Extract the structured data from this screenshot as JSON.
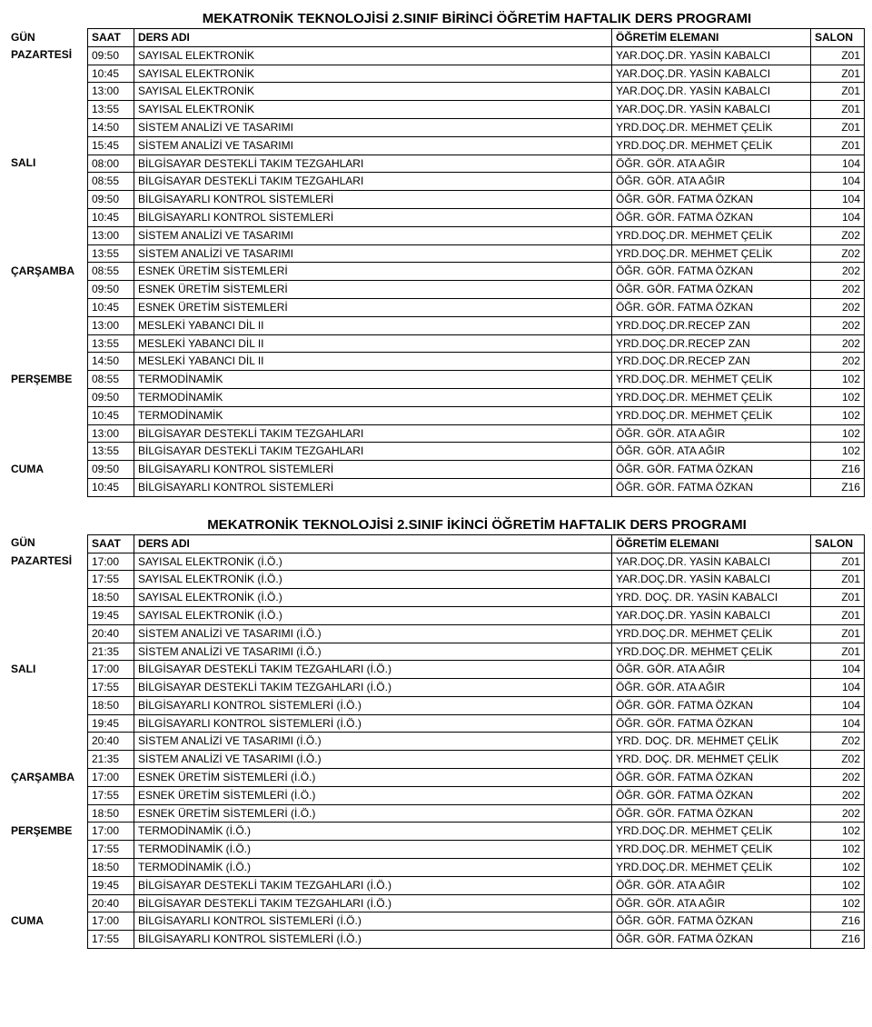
{
  "labels": {
    "gun": "GÜN",
    "saat": "SAAT",
    "ders": "DERS ADI",
    "ogretim": "ÖĞRETİM ELEMANI",
    "salon": "SALON"
  },
  "table1": {
    "title": "MEKATRONİK TEKNOLOJİSİ 2.SINIF BİRİNCİ ÖĞRETİM HAFTALIK DERS PROGRAMI",
    "rows": [
      {
        "gun": "PAZARTESİ",
        "saat": "09:50",
        "ders": "SAYISAL ELEKTRONİK",
        "ogretim": "YAR.DOÇ.DR. YASİN KABALCI",
        "salon": "Z01"
      },
      {
        "gun": "",
        "saat": "10:45",
        "ders": "SAYISAL ELEKTRONİK",
        "ogretim": "YAR.DOÇ.DR. YASİN KABALCI",
        "salon": "Z01"
      },
      {
        "gun": "",
        "saat": "13:00",
        "ders": "SAYISAL ELEKTRONİK",
        "ogretim": "YAR.DOÇ.DR. YASİN KABALCI",
        "salon": "Z01"
      },
      {
        "gun": "",
        "saat": "13:55",
        "ders": "SAYISAL ELEKTRONİK",
        "ogretim": "YAR.DOÇ.DR. YASİN KABALCI",
        "salon": "Z01"
      },
      {
        "gun": "",
        "saat": "14:50",
        "ders": "SİSTEM ANALİZİ VE TASARIMI",
        "ogretim": "YRD.DOÇ.DR. MEHMET ÇELİK",
        "salon": "Z01"
      },
      {
        "gun": "",
        "saat": "15:45",
        "ders": "SİSTEM ANALİZİ VE TASARIMI",
        "ogretim": "YRD.DOÇ.DR. MEHMET ÇELİK",
        "salon": "Z01"
      },
      {
        "gun": "SALI",
        "saat": "08:00",
        "ders": "BİLGİSAYAR DESTEKLİ TAKIM TEZGAHLARI",
        "ogretim": "ÖĞR. GÖR. ATA AĞIR",
        "salon": "104"
      },
      {
        "gun": "",
        "saat": "08:55",
        "ders": "BİLGİSAYAR DESTEKLİ TAKIM TEZGAHLARI",
        "ogretim": "ÖĞR. GÖR. ATA AĞIR",
        "salon": "104"
      },
      {
        "gun": "",
        "saat": "09:50",
        "ders": "BİLGİSAYARLI KONTROL SİSTEMLERİ",
        "ogretim": "ÖĞR. GÖR. FATMA ÖZKAN",
        "salon": "104"
      },
      {
        "gun": "",
        "saat": "10:45",
        "ders": "BİLGİSAYARLI KONTROL SİSTEMLERİ",
        "ogretim": "ÖĞR. GÖR. FATMA ÖZKAN",
        "salon": "104"
      },
      {
        "gun": "",
        "saat": "13:00",
        "ders": "SİSTEM ANALİZİ VE TASARIMI",
        "ogretim": "YRD.DOÇ.DR. MEHMET ÇELİK",
        "salon": "Z02"
      },
      {
        "gun": "",
        "saat": "13:55",
        "ders": "SİSTEM ANALİZİ VE TASARIMI",
        "ogretim": "YRD.DOÇ.DR. MEHMET ÇELİK",
        "salon": "Z02"
      },
      {
        "gun": "ÇARŞAMBA",
        "saat": "08:55",
        "ders": "ESNEK ÜRETİM SİSTEMLERİ",
        "ogretim": "ÖĞR. GÖR. FATMA ÖZKAN",
        "salon": "202"
      },
      {
        "gun": "",
        "saat": "09:50",
        "ders": "ESNEK ÜRETİM SİSTEMLERİ",
        "ogretim": "ÖĞR. GÖR. FATMA ÖZKAN",
        "salon": "202"
      },
      {
        "gun": "",
        "saat": "10:45",
        "ders": "ESNEK ÜRETİM SİSTEMLERİ",
        "ogretim": "ÖĞR. GÖR. FATMA ÖZKAN",
        "salon": "202"
      },
      {
        "gun": "",
        "saat": "13:00",
        "ders": "MESLEKİ YABANCI DİL II",
        "ogretim": "YRD.DOÇ.DR.RECEP ZAN",
        "salon": "202"
      },
      {
        "gun": "",
        "saat": "13:55",
        "ders": "MESLEKİ YABANCI DİL II",
        "ogretim": "YRD.DOÇ.DR.RECEP ZAN",
        "salon": "202"
      },
      {
        "gun": "",
        "saat": "14:50",
        "ders": "MESLEKİ YABANCI DİL II",
        "ogretim": "YRD.DOÇ.DR.RECEP ZAN",
        "salon": "202"
      },
      {
        "gun": "PERŞEMBE",
        "saat": "08:55",
        "ders": "TERMODİNAMİK",
        "ogretim": "YRD.DOÇ.DR. MEHMET ÇELİK",
        "salon": "102"
      },
      {
        "gun": "",
        "saat": "09:50",
        "ders": "TERMODİNAMİK",
        "ogretim": "YRD.DOÇ.DR. MEHMET ÇELİK",
        "salon": "102"
      },
      {
        "gun": "",
        "saat": "10:45",
        "ders": "TERMODİNAMİK",
        "ogretim": "YRD.DOÇ.DR. MEHMET ÇELİK",
        "salon": "102"
      },
      {
        "gun": "",
        "saat": "13:00",
        "ders": "BİLGİSAYAR DESTEKLİ TAKIM TEZGAHLARI",
        "ogretim": "ÖĞR. GÖR. ATA AĞIR",
        "salon": "102"
      },
      {
        "gun": "",
        "saat": "13:55",
        "ders": "BİLGİSAYAR DESTEKLİ TAKIM TEZGAHLARI",
        "ogretim": "ÖĞR. GÖR. ATA AĞIR",
        "salon": "102"
      },
      {
        "gun": "CUMA",
        "saat": "09:50",
        "ders": "BİLGİSAYARLI KONTROL SİSTEMLERİ",
        "ogretim": "ÖĞR. GÖR. FATMA ÖZKAN",
        "salon": "Z16"
      },
      {
        "gun": "",
        "saat": "10:45",
        "ders": "BİLGİSAYARLI KONTROL SİSTEMLERİ",
        "ogretim": "ÖĞR. GÖR. FATMA ÖZKAN",
        "salon": "Z16"
      }
    ]
  },
  "table2": {
    "title": "MEKATRONİK TEKNOLOJİSİ 2.SINIF İKİNCİ ÖĞRETİM HAFTALIK DERS PROGRAMI",
    "rows": [
      {
        "gun": "PAZARTESİ",
        "saat": "17:00",
        "ders": "SAYISAL ELEKTRONİK (İ.Ö.)",
        "ogretim": "YAR.DOÇ.DR. YASİN KABALCI",
        "salon": "Z01"
      },
      {
        "gun": "",
        "saat": "17:55",
        "ders": "SAYISAL ELEKTRONİK (İ.Ö.)",
        "ogretim": "YAR.DOÇ.DR. YASİN KABALCI",
        "salon": "Z01"
      },
      {
        "gun": "",
        "saat": "18:50",
        "ders": "SAYISAL ELEKTRONİK (İ.Ö.)",
        "ogretim": "YRD. DOÇ. DR. YASİN KABALCI",
        "salon": "Z01"
      },
      {
        "gun": "",
        "saat": "19:45",
        "ders": "SAYISAL ELEKTRONİK (İ.Ö.)",
        "ogretim": "YAR.DOÇ.DR. YASİN KABALCI",
        "salon": "Z01"
      },
      {
        "gun": "",
        "saat": "20:40",
        "ders": "SİSTEM ANALİZİ VE TASARIMI (İ.Ö.)",
        "ogretim": "YRD.DOÇ.DR. MEHMET ÇELİK",
        "salon": "Z01"
      },
      {
        "gun": "",
        "saat": "21:35",
        "ders": "SİSTEM ANALİZİ VE TASARIMI (İ.Ö.)",
        "ogretim": "YRD.DOÇ.DR. MEHMET ÇELİK",
        "salon": "Z01"
      },
      {
        "gun": "SALI",
        "saat": "17:00",
        "ders": "BİLGİSAYAR DESTEKLİ TAKIM TEZGAHLARI (İ.Ö.)",
        "ogretim": "ÖĞR. GÖR. ATA AĞIR",
        "salon": "104"
      },
      {
        "gun": "",
        "saat": "17:55",
        "ders": "BİLGİSAYAR DESTEKLİ TAKIM TEZGAHLARI (İ.Ö.)",
        "ogretim": "ÖĞR. GÖR. ATA AĞIR",
        "salon": "104"
      },
      {
        "gun": "",
        "saat": "18:50",
        "ders": "BİLGİSAYARLI KONTROL SİSTEMLERİ (İ.Ö.)",
        "ogretim": "ÖĞR. GÖR. FATMA ÖZKAN",
        "salon": "104"
      },
      {
        "gun": "",
        "saat": "19:45",
        "ders": "BİLGİSAYARLI KONTROL SİSTEMLERİ (İ.Ö.)",
        "ogretim": "ÖĞR. GÖR. FATMA ÖZKAN",
        "salon": "104"
      },
      {
        "gun": "",
        "saat": "20:40",
        "ders": "SİSTEM ANALİZİ VE TASARIMI (İ.Ö.)",
        "ogretim": "YRD. DOÇ. DR. MEHMET ÇELİK",
        "salon": "Z02"
      },
      {
        "gun": "",
        "saat": "21:35",
        "ders": "SİSTEM ANALİZİ VE TASARIMI (İ.Ö.)",
        "ogretim": "YRD. DOÇ. DR. MEHMET ÇELİK",
        "salon": "Z02"
      },
      {
        "gun": "ÇARŞAMBA",
        "saat": "17:00",
        "ders": "ESNEK ÜRETİM SİSTEMLERİ (İ.Ö.)",
        "ogretim": "ÖĞR. GÖR. FATMA ÖZKAN",
        "salon": "202"
      },
      {
        "gun": "",
        "saat": "17:55",
        "ders": "ESNEK ÜRETİM SİSTEMLERİ (İ.Ö.)",
        "ogretim": "ÖĞR. GÖR. FATMA ÖZKAN",
        "salon": "202"
      },
      {
        "gun": "",
        "saat": "18:50",
        "ders": "ESNEK ÜRETİM SİSTEMLERİ (İ.Ö.)",
        "ogretim": "ÖĞR. GÖR. FATMA ÖZKAN",
        "salon": "202"
      },
      {
        "gun": "PERŞEMBE",
        "saat": "17:00",
        "ders": "TERMODİNAMİK (İ.Ö.)",
        "ogretim": "YRD.DOÇ.DR. MEHMET ÇELİK",
        "salon": "102"
      },
      {
        "gun": "",
        "saat": "17:55",
        "ders": "TERMODİNAMİK (İ.Ö.)",
        "ogretim": "YRD.DOÇ.DR. MEHMET ÇELİK",
        "salon": "102"
      },
      {
        "gun": "",
        "saat": "18:50",
        "ders": "TERMODİNAMİK (İ.Ö.)",
        "ogretim": "YRD.DOÇ.DR. MEHMET ÇELİK",
        "salon": "102"
      },
      {
        "gun": "",
        "saat": "19:45",
        "ders": "BİLGİSAYAR DESTEKLİ TAKIM TEZGAHLARI (İ.Ö.)",
        "ogretim": "ÖĞR. GÖR. ATA AĞIR",
        "salon": "102"
      },
      {
        "gun": "",
        "saat": "20:40",
        "ders": "BİLGİSAYAR DESTEKLİ TAKIM TEZGAHLARI (İ.Ö.)",
        "ogretim": "ÖĞR. GÖR. ATA AĞIR",
        "salon": "102"
      },
      {
        "gun": "CUMA",
        "saat": "17:00",
        "ders": "BİLGİSAYARLI KONTROL SİSTEMLERİ (İ.Ö.)",
        "ogretim": "ÖĞR. GÖR. FATMA ÖZKAN",
        "salon": "Z16"
      },
      {
        "gun": "",
        "saat": "17:55",
        "ders": "BİLGİSAYARLI KONTROL SİSTEMLERİ (İ.Ö.)",
        "ogretim": "ÖĞR. GÖR. FATMA ÖZKAN",
        "salon": "Z16"
      }
    ]
  }
}
